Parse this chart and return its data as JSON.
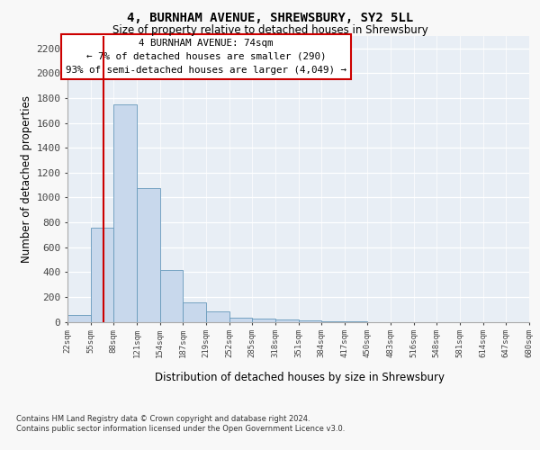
{
  "title1": "4, BURNHAM AVENUE, SHREWSBURY, SY2 5LL",
  "title2": "Size of property relative to detached houses in Shrewsbury",
  "xlabel": "Distribution of detached houses by size in Shrewsbury",
  "ylabel": "Number of detached properties",
  "bar_values": [
    55,
    760,
    1750,
    1075,
    420,
    155,
    80,
    35,
    25,
    15,
    10,
    5,
    5,
    0,
    0,
    0,
    0,
    0,
    0,
    0
  ],
  "xtick_labels": [
    "22sqm",
    "55sqm",
    "88sqm",
    "121sqm",
    "154sqm",
    "187sqm",
    "219sqm",
    "252sqm",
    "285sqm",
    "318sqm",
    "351sqm",
    "384sqm",
    "417sqm",
    "450sqm",
    "483sqm",
    "516sqm",
    "548sqm",
    "581sqm",
    "614sqm",
    "647sqm",
    "680sqm"
  ],
  "bar_color": "#c8d8ec",
  "bar_edge_color": "#6699bb",
  "annotation_line1": "4 BURNHAM AVENUE: 74sqm",
  "annotation_line2": "← 7% of detached houses are smaller (290)",
  "annotation_line3": "93% of semi-detached houses are larger (4,049) →",
  "red_line_color": "#cc0000",
  "ann_box_edge": "#cc0000",
  "ylim_max": 2300,
  "yticks": [
    0,
    200,
    400,
    600,
    800,
    1000,
    1200,
    1400,
    1600,
    1800,
    2000,
    2200
  ],
  "plot_bg": "#e8eef5",
  "grid_color": "#ffffff",
  "fig_bg": "#f8f8f8",
  "footer1": "Contains HM Land Registry data © Crown copyright and database right 2024.",
  "footer2": "Contains public sector information licensed under the Open Government Licence v3.0."
}
